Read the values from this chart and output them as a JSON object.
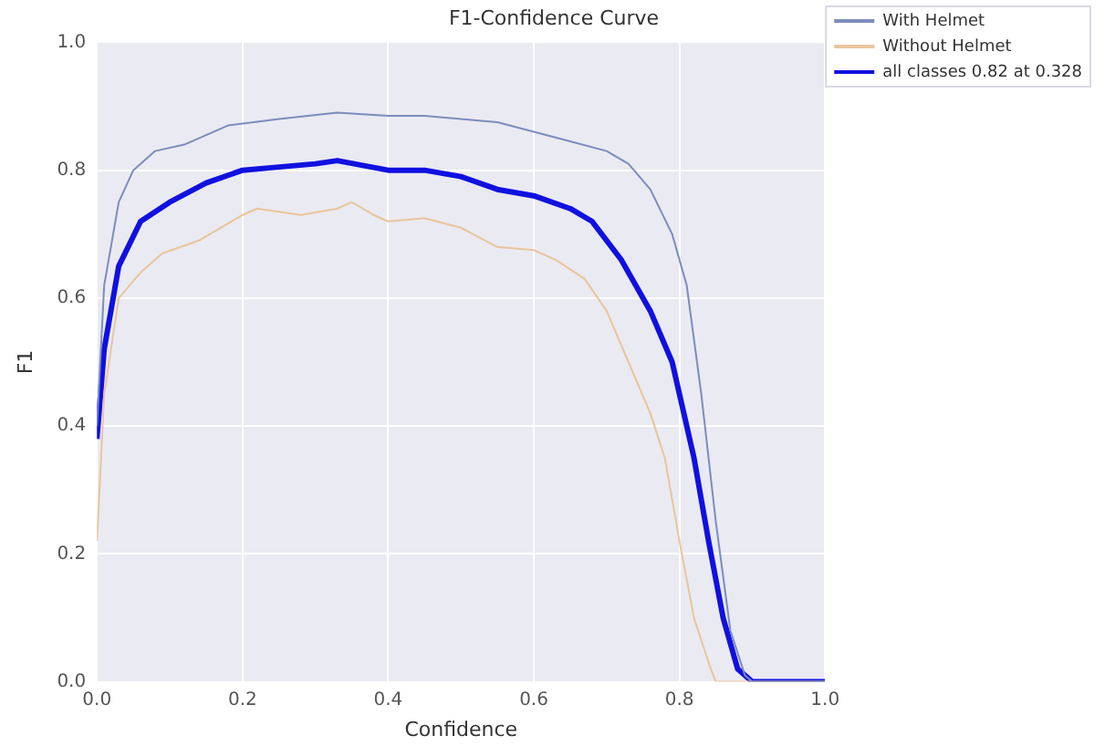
{
  "chart_data": {
    "type": "line",
    "title": "F1-Confidence Curve",
    "xlabel": "Confidence",
    "ylabel": "F1",
    "xlim": [
      0,
      1
    ],
    "ylim": [
      0,
      1
    ],
    "xticks": [
      {
        "value": 0,
        "label": "0.0"
      },
      {
        "value": 0.2,
        "label": "0.2"
      },
      {
        "value": 0.4,
        "label": "0.4"
      },
      {
        "value": 0.6,
        "label": "0.6"
      },
      {
        "value": 0.8,
        "label": "0.8"
      },
      {
        "value": 1,
        "label": "1.0"
      }
    ],
    "yticks": [
      {
        "value": 0,
        "label": "0.0"
      },
      {
        "value": 0.2,
        "label": "0.2"
      },
      {
        "value": 0.4,
        "label": "0.4"
      },
      {
        "value": 0.6,
        "label": "0.6"
      },
      {
        "value": 0.8,
        "label": "0.8"
      },
      {
        "value": 1,
        "label": "1.0"
      }
    ],
    "grid": true,
    "legend": "top right",
    "marker": "none",
    "line_style": "solid",
    "series": [
      {
        "name": "With Helmet",
        "color": "#7c8cbc",
        "x": [
          0,
          0.01,
          0.03,
          0.05,
          0.08,
          0.12,
          0.18,
          0.25,
          0.33,
          0.4,
          0.45,
          0.5,
          0.55,
          0.6,
          0.65,
          0.7,
          0.73,
          0.76,
          0.79,
          0.81,
          0.83,
          0.85,
          0.87,
          0.89,
          0.9,
          1
        ],
        "values": [
          0.4,
          0.62,
          0.75,
          0.8,
          0.83,
          0.84,
          0.87,
          0.88,
          0.89,
          0.885,
          0.885,
          0.88,
          0.875,
          0.86,
          0.845,
          0.83,
          0.81,
          0.77,
          0.7,
          0.62,
          0.45,
          0.25,
          0.08,
          0.01,
          0,
          0
        ]
      },
      {
        "name": "Without Helmet",
        "color": "#e9c59c",
        "x": [
          0,
          0.01,
          0.03,
          0.06,
          0.09,
          0.14,
          0.2,
          0.22,
          0.28,
          0.33,
          0.35,
          0.38,
          0.4,
          0.45,
          0.5,
          0.55,
          0.6,
          0.63,
          0.67,
          0.7,
          0.73,
          0.76,
          0.78,
          0.8,
          0.82,
          0.84,
          0.85,
          1
        ],
        "values": [
          0.22,
          0.45,
          0.6,
          0.64,
          0.67,
          0.69,
          0.73,
          0.74,
          0.73,
          0.74,
          0.75,
          0.73,
          0.72,
          0.725,
          0.71,
          0.68,
          0.675,
          0.66,
          0.63,
          0.58,
          0.5,
          0.42,
          0.35,
          0.22,
          0.1,
          0.03,
          0,
          0
        ]
      },
      {
        "name": "all classes 0.82 at 0.328",
        "color": "#1010e0",
        "x": [
          0,
          0.01,
          0.03,
          0.06,
          0.1,
          0.15,
          0.2,
          0.25,
          0.3,
          0.33,
          0.4,
          0.45,
          0.5,
          0.55,
          0.6,
          0.65,
          0.68,
          0.72,
          0.76,
          0.79,
          0.82,
          0.84,
          0.86,
          0.88,
          0.9,
          1
        ],
        "values": [
          0.38,
          0.52,
          0.65,
          0.72,
          0.75,
          0.78,
          0.8,
          0.805,
          0.81,
          0.815,
          0.8,
          0.8,
          0.79,
          0.77,
          0.76,
          0.74,
          0.72,
          0.66,
          0.58,
          0.5,
          0.35,
          0.22,
          0.1,
          0.02,
          0,
          0
        ]
      }
    ]
  }
}
